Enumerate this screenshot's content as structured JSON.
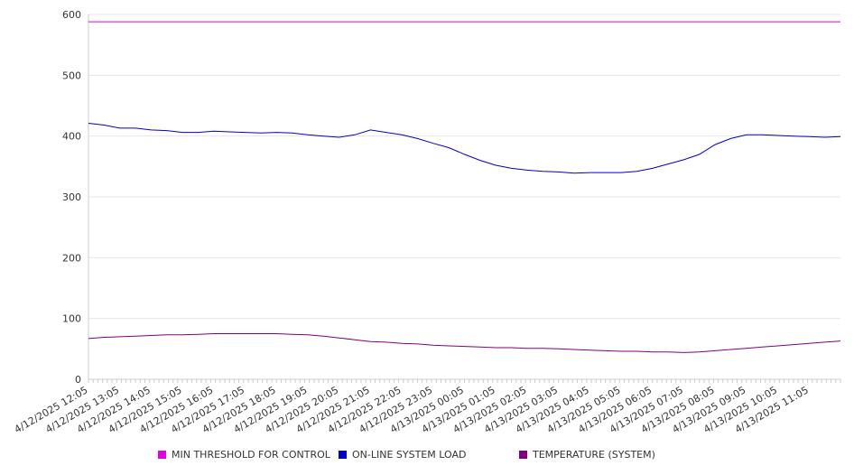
{
  "chart_data": {
    "type": "line",
    "title": "",
    "xlabel": "",
    "ylabel": "",
    "ylim": [
      0,
      600
    ],
    "y_ticks": [
      "0",
      "100",
      "200",
      "300",
      "400",
      "500",
      "600"
    ],
    "x_tick_labels": [
      "4/12/2025 12:05",
      "4/12/2025 13:05",
      "4/12/2025 14:05",
      "4/12/2025 15:05",
      "4/12/2025 16:05",
      "4/12/2025 17:05",
      "4/12/2025 18:05",
      "4/12/2025 19:05",
      "4/12/2025 20:05",
      "4/12/2025 21:05",
      "4/12/2025 22:05",
      "4/12/2025 23:05",
      "4/13/2025 00:05",
      "4/13/2025 01:05",
      "4/13/2025 02:05",
      "4/13/2025 03:05",
      "4/13/2025 04:05",
      "4/13/2025 05:05",
      "4/13/2025 06:05",
      "4/13/2025 07:05",
      "4/13/2025 08:05",
      "4/13/2025 09:05",
      "4/13/2025 10:05",
      "4/13/2025 11:05"
    ],
    "x": [
      "4/12/2025 12:05",
      "4/12/2025 12:35",
      "4/12/2025 13:05",
      "4/12/2025 13:35",
      "4/12/2025 14:05",
      "4/12/2025 14:35",
      "4/12/2025 15:05",
      "4/12/2025 15:35",
      "4/12/2025 16:05",
      "4/12/2025 16:35",
      "4/12/2025 17:05",
      "4/12/2025 17:35",
      "4/12/2025 18:05",
      "4/12/2025 18:35",
      "4/12/2025 19:05",
      "4/12/2025 19:35",
      "4/12/2025 20:05",
      "4/12/2025 20:35",
      "4/12/2025 21:05",
      "4/12/2025 21:35",
      "4/12/2025 22:05",
      "4/12/2025 22:35",
      "4/12/2025 23:05",
      "4/12/2025 23:35",
      "4/13/2025 00:05",
      "4/13/2025 00:35",
      "4/13/2025 01:05",
      "4/13/2025 01:35",
      "4/13/2025 02:05",
      "4/13/2025 02:35",
      "4/13/2025 03:05",
      "4/13/2025 03:35",
      "4/13/2025 04:05",
      "4/13/2025 04:35",
      "4/13/2025 05:05",
      "4/13/2025 05:35",
      "4/13/2025 06:05",
      "4/13/2025 06:35",
      "4/13/2025 07:05",
      "4/13/2025 07:35",
      "4/13/2025 08:05",
      "4/13/2025 08:35",
      "4/13/2025 09:05",
      "4/13/2025 09:35",
      "4/13/2025 10:05",
      "4/13/2025 10:35",
      "4/13/2025 11:05",
      "4/13/2025 11:35",
      "4/13/2025 12:05"
    ],
    "series": [
      {
        "name": "MIN THRESHOLD FOR CONTROL",
        "color": "#e000e0",
        "values": [
          588,
          588,
          588,
          588,
          588,
          588,
          588,
          588,
          588,
          588,
          588,
          588,
          588,
          588,
          588,
          588,
          588,
          588,
          588,
          588,
          588,
          588,
          588,
          588,
          588,
          588,
          588,
          588,
          588,
          588,
          588,
          588,
          588,
          588,
          588,
          588,
          588,
          588,
          588,
          588,
          588,
          588,
          588,
          588,
          588,
          588,
          588,
          588,
          588
        ]
      },
      {
        "name": "ON-LINE SYSTEM LOAD",
        "color": "#0000cc",
        "values": [
          421,
          418,
          413,
          413,
          410,
          409,
          406,
          406,
          408,
          407,
          406,
          405,
          406,
          405,
          402,
          400,
          398,
          402,
          410,
          406,
          402,
          396,
          388,
          381,
          370,
          360,
          352,
          347,
          344,
          342,
          341,
          339,
          340,
          340,
          340,
          342,
          347,
          354,
          361,
          370,
          386,
          396,
          402,
          402,
          401,
          400,
          399,
          398,
          399
        ]
      },
      {
        "name": "TEMPERATURE (SYSTEM)",
        "color": "#800080",
        "values": [
          67,
          69,
          70,
          71,
          72,
          73,
          73,
          74,
          75,
          75,
          75,
          75,
          75,
          74,
          73,
          71,
          68,
          65,
          62,
          61,
          59,
          58,
          56,
          55,
          54,
          53,
          52,
          52,
          51,
          51,
          50,
          49,
          48,
          47,
          46,
          46,
          45,
          45,
          44,
          45,
          47,
          49,
          51,
          53,
          55,
          57,
          59,
          61,
          63
        ]
      }
    ],
    "grid": true,
    "legend": "bottom"
  }
}
